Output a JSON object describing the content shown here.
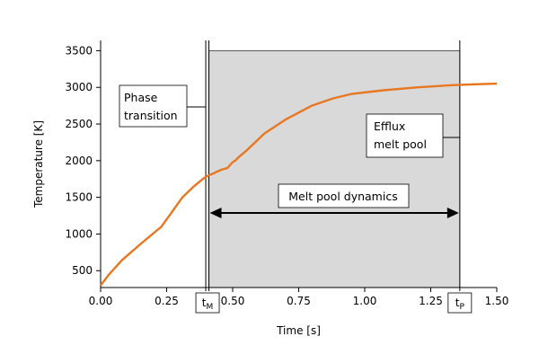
{
  "chart_data": {
    "type": "line",
    "xlabel": "Time [s]",
    "ylabel": "Temperature [K]",
    "xlim": [
      0,
      1.5
    ],
    "ylim": [
      270,
      3640
    ],
    "x_ticks": [
      "0.00",
      "0.25",
      "0.50",
      "0.75",
      "1.00",
      "1.25",
      "1.50"
    ],
    "x_tick_values": [
      0,
      0.25,
      0.5,
      0.75,
      1.0,
      1.25,
      1.5
    ],
    "y_ticks": [
      "500",
      "1000",
      "1500",
      "2000",
      "2500",
      "3000",
      "3500"
    ],
    "y_tick_values": [
      500,
      1000,
      1500,
      2000,
      2500,
      3000,
      3500
    ],
    "grid": false,
    "color": "#e87722",
    "shade_color": "#d9d9d9",
    "series": [
      {
        "x": [
          0.0,
          0.03,
          0.08,
          0.15,
          0.23,
          0.27,
          0.31,
          0.35,
          0.39,
          0.41,
          0.43,
          0.44,
          0.46,
          0.47,
          0.48,
          0.5,
          0.51,
          0.52,
          0.55,
          0.62,
          0.7,
          0.8,
          0.88,
          0.95,
          1.07,
          1.2,
          1.33,
          1.4,
          1.5
        ],
        "y": [
          300,
          440,
          640,
          860,
          1100,
          1300,
          1500,
          1640,
          1760,
          1800,
          1830,
          1850,
          1880,
          1890,
          1900,
          1980,
          2000,
          2040,
          2130,
          2370,
          2560,
          2750,
          2850,
          2910,
          2960,
          3000,
          3030,
          3040,
          3050
        ]
      }
    ],
    "markers": [
      {
        "label": "t",
        "subscript": "M",
        "x": 0.41
      },
      {
        "label": "t",
        "subscript": "P",
        "x": 1.36
      }
    ],
    "shaded_region": {
      "x": [
        0.41,
        1.36
      ],
      "y_top": 3500
    },
    "annotations": {
      "phase_transition": [
        "Phase",
        "transition"
      ],
      "efflux": [
        "Efflux",
        "melt pool"
      ],
      "melt_pool_dynamics": "Melt pool dynamics"
    }
  }
}
